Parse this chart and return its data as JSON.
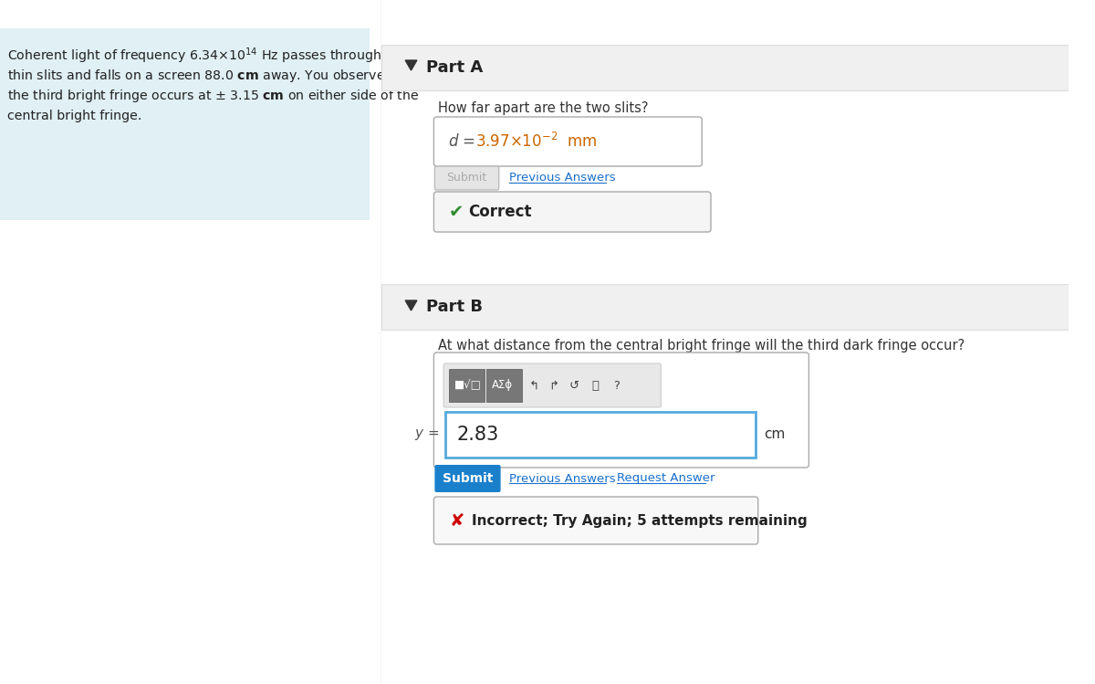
{
  "bg_color": "#ffffff",
  "left_panel_bg": "#e0f0f5",
  "right_bg": "#f5f5f5",
  "section_header_bg": "#eeeeee",
  "part_a_label": "Part A",
  "part_b_label": "Part B",
  "question_a": "How far apart are the two slits?",
  "question_b": "At what distance from the central bright fringe will the third dark fringe occur?",
  "answer_a_value": "3.97×10",
  "answer_a_exp": "-2",
  "answer_a_unit": "  mm",
  "answer_b_value": "2.83",
  "answer_b_unit": "cm",
  "correct_text": "Correct",
  "incorrect_text": "Incorrect; Try Again; 5 attempts remaining",
  "submit_text": "Submit",
  "prev_answers_text": "Previous Answers",
  "request_answer_text": "Request Answer",
  "checkmark_color": "#2e8b2e",
  "xmark_color": "#cc0000",
  "submit_btn_color": "#1a80cc",
  "link_color": "#1a70cc",
  "border_color": "#cccccc",
  "input_border_color": "#55aadd",
  "triangle_color": "#333333",
  "part_label_color": "#222222",
  "answer_value_color": "#cc6600",
  "label_color": "#555555"
}
